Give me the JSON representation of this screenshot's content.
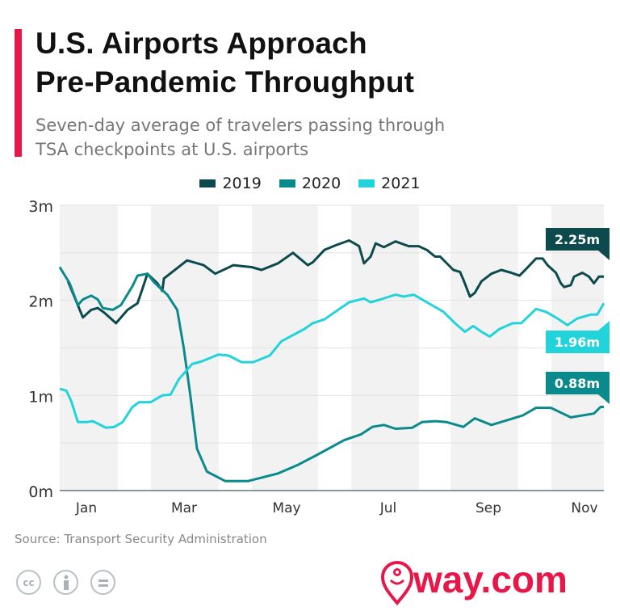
{
  "header": {
    "title_line1": "U.S. Airports Approach",
    "title_line2": "Pre-Pandemic Throughput",
    "subtitle_line1": "Seven-day average of travelers passing through",
    "subtitle_line2": "TSA checkpoints at U.S. airports"
  },
  "footer": {
    "source": "Source: Transport Security Administration",
    "license_icons": [
      "cc-icon",
      "attribution-icon",
      "no-derivatives-icon"
    ],
    "cc_text": "cc",
    "logo": "way.com",
    "brand_color": "#e8174a"
  },
  "chart_data": {
    "type": "line",
    "ylim": [
      0,
      3
    ],
    "yticks": [
      {
        "v": 0,
        "label": "0m"
      },
      {
        "v": 1,
        "label": "1m"
      },
      {
        "v": 2,
        "label": "2m"
      },
      {
        "v": 3,
        "label": "3m"
      }
    ],
    "xticks": [
      "Jan",
      "Mar",
      "May",
      "Jul",
      "Sep",
      "Nov"
    ],
    "legend_position": "top",
    "grid": true,
    "series": [
      {
        "name": "2019",
        "color": "#0c4a4d",
        "end_label": "2.25m",
        "points": [
          [
            "01-06",
            2.2
          ],
          [
            "01-15",
            1.82
          ],
          [
            "01-20",
            1.9
          ],
          [
            "01-24",
            1.92
          ],
          [
            "01-28",
            1.87
          ],
          [
            "02-04",
            1.76
          ],
          [
            "02-11",
            1.9
          ],
          [
            "02-17",
            1.97
          ],
          [
            "02-20",
            2.12
          ],
          [
            "02-23",
            2.28
          ],
          [
            "03-01",
            2.18
          ],
          [
            "03-04",
            2.1
          ],
          [
            "03-05",
            2.23
          ],
          [
            "03-19",
            2.42
          ],
          [
            "03-29",
            2.37
          ],
          [
            "04-05",
            2.28
          ],
          [
            "04-16",
            2.37
          ],
          [
            "04-21",
            2.36
          ],
          [
            "04-27",
            2.35
          ],
          [
            "05-03",
            2.32
          ],
          [
            "05-13",
            2.39
          ],
          [
            "05-22",
            2.5
          ],
          [
            "05-31",
            2.37
          ],
          [
            "06-03",
            2.4
          ],
          [
            "06-10",
            2.53
          ],
          [
            "06-17",
            2.58
          ],
          [
            "06-25",
            2.63
          ],
          [
            "07-01",
            2.57
          ],
          [
            "07-04",
            2.39
          ],
          [
            "07-08",
            2.46
          ],
          [
            "07-11",
            2.6
          ],
          [
            "07-16",
            2.56
          ],
          [
            "07-23",
            2.62
          ],
          [
            "07-31",
            2.57
          ],
          [
            "08-06",
            2.57
          ],
          [
            "08-11",
            2.53
          ],
          [
            "08-16",
            2.46
          ],
          [
            "08-19",
            2.46
          ],
          [
            "08-27",
            2.32
          ],
          [
            "08-31",
            2.3
          ],
          [
            "09-02",
            2.22
          ],
          [
            "09-06",
            2.04
          ],
          [
            "09-09",
            2.08
          ],
          [
            "09-13",
            2.2
          ],
          [
            "09-19",
            2.28
          ],
          [
            "09-25",
            2.32
          ],
          [
            "10-01",
            2.29
          ],
          [
            "10-06",
            2.26
          ],
          [
            "10-10",
            2.33
          ],
          [
            "10-16",
            2.44
          ],
          [
            "10-20",
            2.44
          ],
          [
            "10-23",
            2.37
          ],
          [
            "10-28",
            2.29
          ],
          [
            "10-31",
            2.18
          ],
          [
            "11-02",
            2.14
          ],
          [
            "11-06",
            2.16
          ],
          [
            "11-08",
            2.25
          ],
          [
            "11-13",
            2.29
          ],
          [
            "11-17",
            2.25
          ],
          [
            "11-20",
            2.18
          ],
          [
            "11-23",
            2.25
          ],
          [
            "11-26",
            2.25
          ]
        ]
      },
      {
        "name": "2020",
        "color": "#0a8a8c",
        "end_label": "0.88m",
        "points": [
          [
            "01-01",
            2.35
          ],
          [
            "01-07",
            2.18
          ],
          [
            "01-12",
            1.95
          ],
          [
            "01-15",
            2.01
          ],
          [
            "01-20",
            2.05
          ],
          [
            "01-24",
            2.01
          ],
          [
            "01-27",
            1.92
          ],
          [
            "02-02",
            1.9
          ],
          [
            "02-07",
            1.95
          ],
          [
            "02-14",
            2.15
          ],
          [
            "02-17",
            2.26
          ],
          [
            "02-23",
            2.28
          ],
          [
            "02-27",
            2.19
          ],
          [
            "03-07",
            2.06
          ],
          [
            "03-13",
            1.9
          ],
          [
            "03-17",
            1.5
          ],
          [
            "03-21",
            1.0
          ],
          [
            "03-25",
            0.44
          ],
          [
            "03-31",
            0.2
          ],
          [
            "04-11",
            0.1
          ],
          [
            "04-25",
            0.1
          ],
          [
            "05-13",
            0.18
          ],
          [
            "05-25",
            0.27
          ],
          [
            "06-05",
            0.37
          ],
          [
            "06-22",
            0.53
          ],
          [
            "07-02",
            0.59
          ],
          [
            "07-09",
            0.67
          ],
          [
            "07-16",
            0.69
          ],
          [
            "07-23",
            0.65
          ],
          [
            "08-02",
            0.66
          ],
          [
            "08-08",
            0.72
          ],
          [
            "08-16",
            0.73
          ],
          [
            "08-23",
            0.72
          ],
          [
            "09-02",
            0.67
          ],
          [
            "09-09",
            0.76
          ],
          [
            "09-19",
            0.69
          ],
          [
            "10-08",
            0.79
          ],
          [
            "10-16",
            0.87
          ],
          [
            "10-25",
            0.87
          ],
          [
            "11-06",
            0.77
          ],
          [
            "11-20",
            0.81
          ],
          [
            "11-24",
            0.88
          ],
          [
            "11-26",
            0.88
          ]
        ]
      },
      {
        "name": "2021",
        "color": "#22d3dc",
        "end_label": "1.96m",
        "points": [
          [
            "01-01",
            1.07
          ],
          [
            "01-05",
            1.05
          ],
          [
            "01-08",
            0.94
          ],
          [
            "01-12",
            0.72
          ],
          [
            "01-17",
            0.72
          ],
          [
            "01-21",
            0.73
          ],
          [
            "01-29",
            0.66
          ],
          [
            "02-03",
            0.67
          ],
          [
            "02-08",
            0.72
          ],
          [
            "02-14",
            0.88
          ],
          [
            "02-18",
            0.93
          ],
          [
            "02-25",
            0.93
          ],
          [
            "03-04",
            1.0
          ],
          [
            "03-09",
            1.01
          ],
          [
            "03-14",
            1.17
          ],
          [
            "03-22",
            1.33
          ],
          [
            "03-28",
            1.36
          ],
          [
            "04-07",
            1.43
          ],
          [
            "04-13",
            1.42
          ],
          [
            "04-21",
            1.35
          ],
          [
            "04-28",
            1.35
          ],
          [
            "05-08",
            1.42
          ],
          [
            "05-15",
            1.57
          ],
          [
            "05-29",
            1.7
          ],
          [
            "06-03",
            1.76
          ],
          [
            "06-10",
            1.8
          ],
          [
            "06-25",
            1.98
          ],
          [
            "07-04",
            2.02
          ],
          [
            "07-08",
            1.98
          ],
          [
            "07-14",
            2.01
          ],
          [
            "07-23",
            2.06
          ],
          [
            "07-28",
            2.04
          ],
          [
            "08-03",
            2.06
          ],
          [
            "08-11",
            1.98
          ],
          [
            "08-21",
            1.88
          ],
          [
            "08-28",
            1.76
          ],
          [
            "09-03",
            1.67
          ],
          [
            "09-08",
            1.73
          ],
          [
            "09-13",
            1.67
          ],
          [
            "09-18",
            1.62
          ],
          [
            "09-24",
            1.7
          ],
          [
            "10-02",
            1.76
          ],
          [
            "10-07",
            1.76
          ],
          [
            "10-16",
            1.91
          ],
          [
            "10-22",
            1.88
          ],
          [
            "10-29",
            1.81
          ],
          [
            "11-04",
            1.74
          ],
          [
            "11-10",
            1.81
          ],
          [
            "11-18",
            1.85
          ],
          [
            "11-22",
            1.85
          ],
          [
            "11-26",
            1.97
          ]
        ]
      }
    ]
  }
}
